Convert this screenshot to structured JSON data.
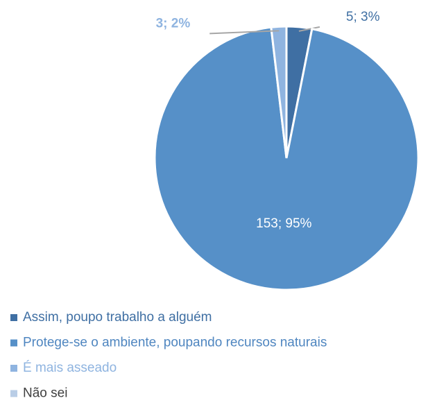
{
  "chart_data": {
    "type": "pie",
    "categories": [
      "Assim, poupo trabalho a alguém",
      "Protege-se o ambiente, poupando recursos naturais",
      "É mais asseado",
      "Não sei"
    ],
    "values": [
      5,
      153,
      3,
      0
    ],
    "value_labels": [
      "5; 3%",
      "153; 95%",
      "3; 2%",
      null
    ],
    "colors": [
      "#3f6fa3",
      "#5690c8",
      "#8fb4e0",
      "#b9cde6"
    ],
    "legend": "bottom"
  }
}
